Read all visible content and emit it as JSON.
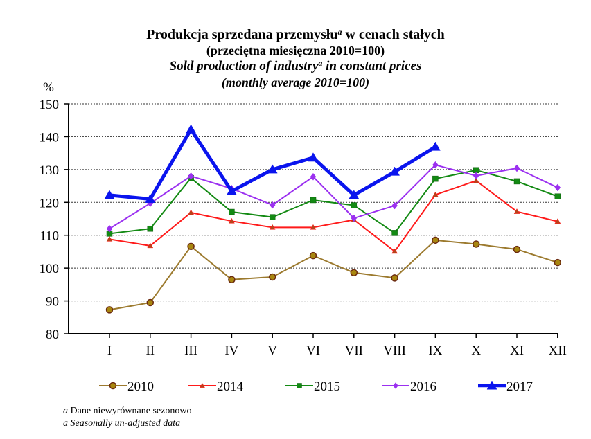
{
  "title": {
    "line1_pre": "Produkcja sprzedana przemysłu",
    "line1_sup": "a",
    "line1_post": " w cenach stałych",
    "line2": "(przeciętna miesięczna 2010=100)",
    "line3_pre": "Sold production of industry",
    "line3_sup": "a",
    "line3_post": " in constant prices",
    "line4": "(monthly average 2010=100)"
  },
  "footnote": {
    "line1_marker": "a",
    "line1_text": " Dane niewyrównane sezonowo",
    "line2": "a Seasonally un-adjusted data"
  },
  "chart_data": {
    "type": "line",
    "title": "Produkcja sprzedana przemysłu w cenach stałych (przeciętna miesięczna 2010=100) / Sold production of industry in constant prices (monthly average 2010=100)",
    "xlabel": "",
    "ylabel": "%",
    "ylim": [
      80,
      150
    ],
    "yticks": [
      80,
      90,
      100,
      110,
      120,
      130,
      140,
      150
    ],
    "grid": "horizontal-dotted",
    "legend_position": "bottom",
    "categories": [
      "I",
      "II",
      "III",
      "IV",
      "V",
      "VI",
      "VII",
      "VIII",
      "IX",
      "X",
      "XI",
      "XII"
    ],
    "series": [
      {
        "name": "2010",
        "color": "#9c7a2e",
        "marker": "circle",
        "marker_fill": "#a8860f",
        "marker_stroke": "#6b2a10",
        "values": [
          87.3,
          89.5,
          106.6,
          96.5,
          97.3,
          103.8,
          98.6,
          97.0,
          108.5,
          107.3,
          105.7,
          101.7
        ]
      },
      {
        "name": "2014",
        "color": "#ff1a1a",
        "marker": "triangle",
        "marker_fill": "#b5451b",
        "marker_stroke": "#ff1a1a",
        "values": [
          108.8,
          106.8,
          116.9,
          114.3,
          112.4,
          112.4,
          114.7,
          105.1,
          122.3,
          126.6,
          117.2,
          114.2
        ]
      },
      {
        "name": "2015",
        "color": "#138a13",
        "marker": "square",
        "marker_fill": "#138a13",
        "marker_stroke": "#0d5c0d",
        "values": [
          110.5,
          112.0,
          127.4,
          117.1,
          115.5,
          120.7,
          119.1,
          110.7,
          127.2,
          129.8,
          126.4,
          121.8
        ]
      },
      {
        "name": "2016",
        "color": "#9b30f0",
        "marker": "diamond",
        "marker_fill": "#9b30f0",
        "marker_stroke": "#9b30f0",
        "values": [
          112.0,
          119.7,
          128.0,
          124.2,
          119.2,
          127.8,
          115.2,
          119.0,
          131.4,
          128.1,
          130.4,
          124.5
        ]
      },
      {
        "name": "2017",
        "color": "#0a14ee",
        "marker": "triangle",
        "marker_fill": "#0a14ee",
        "marker_stroke": "#0a14ee",
        "values": [
          122.2,
          121.0,
          142.2,
          123.4,
          130.0,
          133.6,
          122.2,
          129.3,
          136.9,
          null,
          null,
          null
        ]
      }
    ]
  }
}
